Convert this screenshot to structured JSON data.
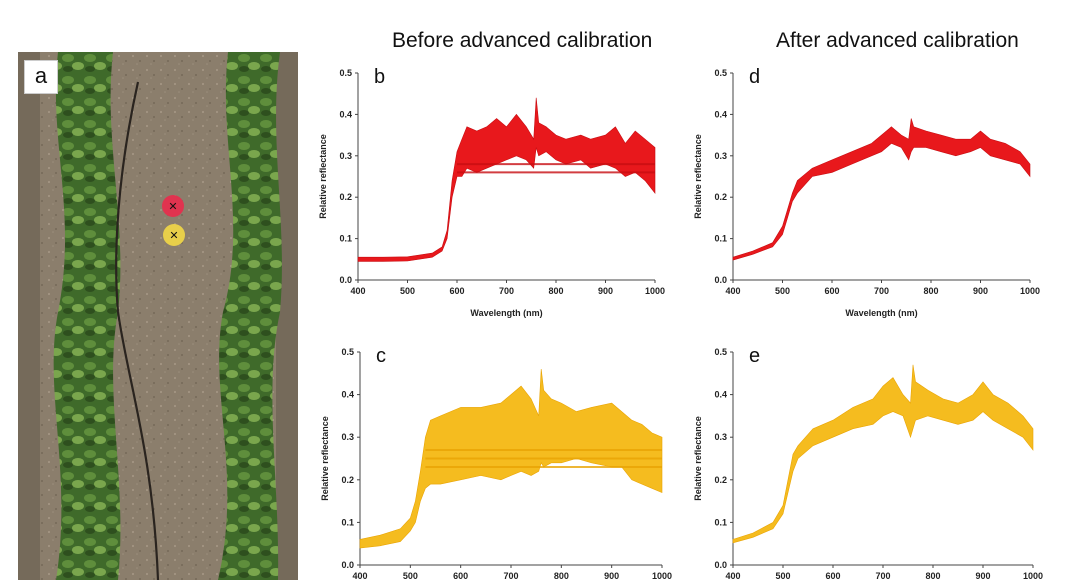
{
  "headers": {
    "before": "Before advanced calibration",
    "after": "After advanced calibration"
  },
  "photo": {
    "label": "a",
    "targets": [
      {
        "name": "red-target",
        "color": "#e0334f"
      },
      {
        "name": "yellow-target",
        "color": "#e8cf4a"
      }
    ]
  },
  "colors": {
    "red": "#e8181c",
    "red_dark": "#c80d12",
    "yellow": "#f5bc1f",
    "yellow_dark": "#e9a404"
  },
  "chart_data": [
    {
      "id": "b",
      "type": "area",
      "label": "b",
      "color": "red",
      "xlabel": "Wavelength (nm)",
      "ylabel": "Relative reflectance",
      "xlim": [
        400,
        1000
      ],
      "ylim": [
        0,
        0.5
      ],
      "xticks": [
        400,
        500,
        600,
        700,
        800,
        900,
        1000
      ],
      "yticks": [
        0.0,
        0.1,
        0.2,
        0.3,
        0.4,
        0.5
      ],
      "x": [
        400,
        450,
        500,
        550,
        570,
        580,
        590,
        600,
        610,
        620,
        640,
        660,
        680,
        700,
        720,
        740,
        755,
        760,
        765,
        780,
        800,
        820,
        850,
        870,
        900,
        920,
        940,
        960,
        980,
        1000
      ],
      "upper": [
        0.055,
        0.055,
        0.056,
        0.065,
        0.08,
        0.12,
        0.24,
        0.31,
        0.34,
        0.37,
        0.36,
        0.37,
        0.39,
        0.37,
        0.4,
        0.37,
        0.34,
        0.44,
        0.38,
        0.37,
        0.35,
        0.34,
        0.35,
        0.34,
        0.35,
        0.37,
        0.33,
        0.36,
        0.34,
        0.32
      ],
      "lower": [
        0.045,
        0.045,
        0.046,
        0.055,
        0.07,
        0.1,
        0.2,
        0.25,
        0.25,
        0.27,
        0.26,
        0.27,
        0.28,
        0.29,
        0.3,
        0.29,
        0.27,
        0.32,
        0.3,
        0.31,
        0.29,
        0.28,
        0.29,
        0.27,
        0.28,
        0.27,
        0.25,
        0.26,
        0.24,
        0.21
      ],
      "bands": [
        0.26,
        0.28
      ]
    },
    {
      "id": "d",
      "type": "area",
      "label": "d",
      "color": "red",
      "xlabel": "Wavelength (nm)",
      "ylabel": "Relative reflectance",
      "xlim": [
        400,
        1000
      ],
      "ylim": [
        0,
        0.5
      ],
      "xticks": [
        400,
        500,
        600,
        700,
        800,
        900,
        1000
      ],
      "yticks": [
        0.0,
        0.1,
        0.2,
        0.3,
        0.4,
        0.5
      ],
      "x": [
        400,
        440,
        480,
        500,
        510,
        520,
        530,
        560,
        600,
        640,
        680,
        700,
        720,
        740,
        755,
        760,
        765,
        790,
        820,
        850,
        880,
        900,
        920,
        950,
        980,
        1000
      ],
      "upper": [
        0.055,
        0.07,
        0.09,
        0.13,
        0.17,
        0.21,
        0.24,
        0.27,
        0.29,
        0.31,
        0.33,
        0.35,
        0.37,
        0.35,
        0.34,
        0.39,
        0.37,
        0.36,
        0.35,
        0.34,
        0.34,
        0.36,
        0.34,
        0.33,
        0.31,
        0.28
      ],
      "lower": [
        0.048,
        0.062,
        0.08,
        0.11,
        0.15,
        0.19,
        0.21,
        0.25,
        0.26,
        0.28,
        0.3,
        0.31,
        0.33,
        0.32,
        0.29,
        0.31,
        0.32,
        0.32,
        0.31,
        0.3,
        0.31,
        0.32,
        0.3,
        0.29,
        0.28,
        0.25
      ],
      "bands": []
    },
    {
      "id": "c",
      "type": "area",
      "label": "c",
      "color": "yellow",
      "xlabel": "",
      "ylabel": "Relative reflectance",
      "xlim": [
        400,
        1000
      ],
      "ylim": [
        0,
        0.5
      ],
      "xticks": [
        400,
        500,
        600,
        700,
        800,
        900,
        1000
      ],
      "yticks": [
        0.0,
        0.1,
        0.2,
        0.3,
        0.4,
        0.5
      ],
      "x": [
        400,
        440,
        480,
        500,
        510,
        520,
        530,
        540,
        560,
        600,
        640,
        680,
        700,
        720,
        740,
        755,
        760,
        765,
        780,
        800,
        830,
        860,
        900,
        920,
        940,
        960,
        980,
        1000
      ],
      "upper": [
        0.06,
        0.07,
        0.085,
        0.11,
        0.15,
        0.22,
        0.3,
        0.34,
        0.35,
        0.37,
        0.37,
        0.38,
        0.4,
        0.42,
        0.39,
        0.35,
        0.46,
        0.41,
        0.39,
        0.38,
        0.36,
        0.37,
        0.38,
        0.36,
        0.34,
        0.33,
        0.31,
        0.3
      ],
      "lower": [
        0.04,
        0.045,
        0.055,
        0.08,
        0.1,
        0.15,
        0.18,
        0.19,
        0.19,
        0.2,
        0.21,
        0.2,
        0.21,
        0.22,
        0.21,
        0.22,
        0.24,
        0.23,
        0.24,
        0.24,
        0.25,
        0.24,
        0.23,
        0.23,
        0.2,
        0.19,
        0.18,
        0.17
      ],
      "bands": [
        0.23,
        0.25,
        0.27
      ]
    },
    {
      "id": "e",
      "type": "area",
      "label": "e",
      "color": "yellow",
      "xlabel": "",
      "ylabel": "Relative reflectance",
      "xlim": [
        400,
        1000
      ],
      "ylim": [
        0,
        0.5
      ],
      "xticks": [
        400,
        500,
        600,
        700,
        800,
        900,
        1000
      ],
      "yticks": [
        0.0,
        0.1,
        0.2,
        0.3,
        0.4,
        0.5
      ],
      "x": [
        400,
        440,
        480,
        500,
        510,
        520,
        530,
        560,
        600,
        640,
        680,
        700,
        720,
        740,
        755,
        760,
        765,
        790,
        820,
        850,
        880,
        900,
        920,
        950,
        980,
        1000
      ],
      "upper": [
        0.06,
        0.075,
        0.1,
        0.14,
        0.2,
        0.26,
        0.28,
        0.32,
        0.34,
        0.37,
        0.39,
        0.42,
        0.44,
        0.4,
        0.38,
        0.47,
        0.43,
        0.41,
        0.39,
        0.38,
        0.4,
        0.43,
        0.4,
        0.38,
        0.35,
        0.32
      ],
      "lower": [
        0.052,
        0.065,
        0.085,
        0.12,
        0.17,
        0.22,
        0.25,
        0.28,
        0.3,
        0.32,
        0.33,
        0.35,
        0.36,
        0.35,
        0.3,
        0.32,
        0.34,
        0.35,
        0.34,
        0.33,
        0.34,
        0.36,
        0.34,
        0.32,
        0.3,
        0.27
      ],
      "bands": []
    }
  ]
}
